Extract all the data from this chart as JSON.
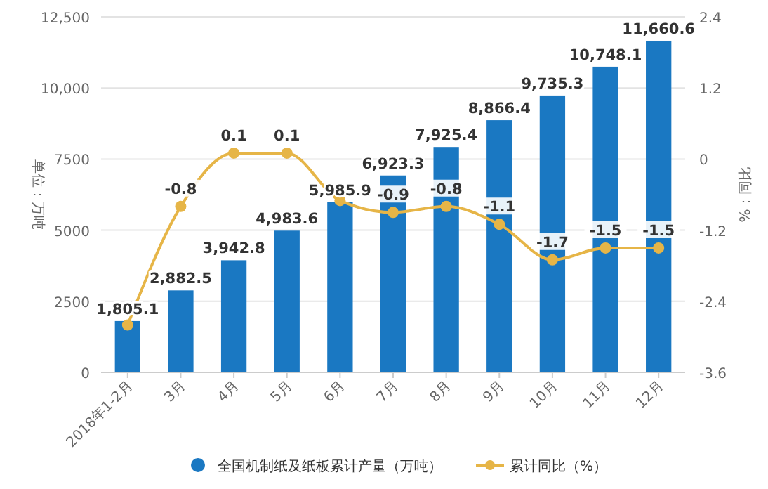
{
  "chart_data": {
    "type": "bar",
    "ylabel": "单位：万吨",
    "y2label": "%：同比",
    "categories": [
      "2018年1-2月",
      "3月",
      "4月",
      "5月",
      "6月",
      "7月",
      "8月",
      "9月",
      "10月",
      "11月",
      "12月"
    ],
    "series": [
      {
        "name": "全国机制纸及纸板累计产量（万吨）",
        "color": "#1a78c2",
        "values": [
          1805.1,
          2882.5,
          3942.8,
          4983.6,
          5985.9,
          6923.3,
          7925.4,
          8866.4,
          9735.3,
          10748.1,
          11660.6
        ],
        "value_labels": [
          "1,805.1",
          "2,882.5",
          "3,942.8",
          "4,983.6",
          "5,985.9",
          "6,923.3",
          "7,925.4",
          "8,866.4",
          "9,735.3",
          "10,748.1",
          "11,660.6"
        ]
      },
      {
        "name": "累计同比（%）",
        "type": "line",
        "axis": "y2",
        "color": "#e6b547",
        "marker": "circle",
        "values": [
          -2.8,
          -0.8,
          0.1,
          0.1,
          -0.7,
          -0.9,
          -0.8,
          -1.1,
          -1.7,
          -1.5,
          -1.5
        ],
        "value_labels": [
          null,
          "-0.8",
          "0.1",
          "0.1",
          null,
          "-0.9",
          "-0.8",
          "-1.1",
          "-1.7",
          "-1.5",
          "-1.5"
        ]
      }
    ],
    "ylim": [
      0,
      12500
    ],
    "yticks": [
      0,
      {
        "value": 2500,
        "label": "2500"
      },
      {
        "value": 5000,
        "label": "5000"
      },
      {
        "value": 7500,
        "label": "7500"
      },
      {
        "value": 10000,
        "label": "10,000"
      },
      {
        "value": 12500,
        "label": "12,500"
      }
    ],
    "y2lim": [
      -3.6,
      2.4
    ],
    "y2ticks": [
      -3.6,
      -2.4,
      -1.2,
      0,
      1.2,
      2.4
    ],
    "grid": "y",
    "legend": "bottom"
  }
}
